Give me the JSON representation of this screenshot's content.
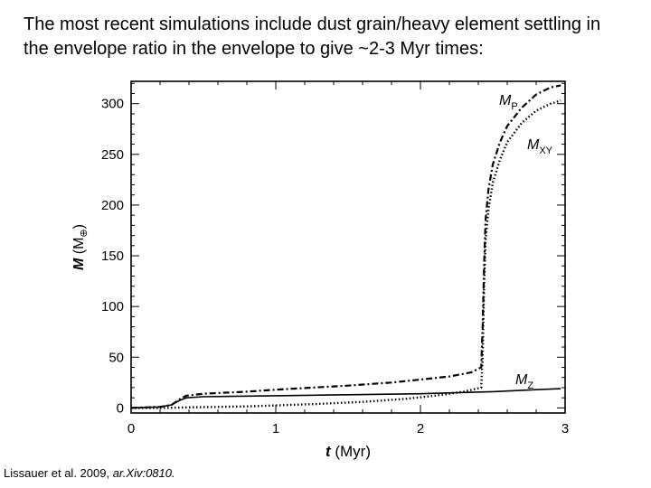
{
  "slide": {
    "heading_line1": "The most recent simulations include dust grain/heavy element settling in",
    "heading_line2": "the envelope ratio in the envelope to give ~2-3 Myr times:",
    "caption_authors": "Lissauer et al. 2009, ",
    "caption_ref": "ar.Xiv:0810."
  },
  "chart_data": {
    "type": "line",
    "xlabel_var": "t",
    "xlabel_unit": "(Myr)",
    "ylabel_var": "M",
    "ylabel_unit": "(M",
    "ylabel_sub": "⊕",
    "ylabel_close": ")",
    "xlim": [
      0,
      3
    ],
    "ylim": [
      -5,
      322
    ],
    "x_ticks": [
      0,
      1,
      2,
      3
    ],
    "y_ticks": [
      0,
      50,
      100,
      150,
      200,
      250,
      300
    ],
    "grid": false,
    "series": [
      {
        "name": "M",
        "subscript": "P",
        "style": "dash-dot",
        "color": "#000000",
        "x": [
          0,
          0.1,
          0.2,
          0.28,
          0.33,
          0.38,
          0.5,
          0.8,
          1.0,
          1.5,
          1.8,
          2.0,
          2.2,
          2.35,
          2.42,
          2.43,
          2.44,
          2.45,
          2.47,
          2.5,
          2.55,
          2.6,
          2.7,
          2.8,
          2.9,
          2.97
        ],
        "y": [
          0,
          0.5,
          1,
          3,
          8,
          12,
          14,
          16,
          18,
          22,
          25,
          28,
          31,
          35,
          40,
          80,
          140,
          185,
          215,
          240,
          262,
          278,
          296,
          309,
          316,
          318
        ]
      },
      {
        "name": "M",
        "subscript": "XY",
        "style": "dotted",
        "color": "#000000",
        "x": [
          0,
          0.1,
          0.2,
          0.3,
          0.38,
          0.5,
          0.8,
          1.0,
          1.3,
          1.6,
          1.9,
          2.1,
          2.3,
          2.42,
          2.43,
          2.44,
          2.45,
          2.47,
          2.5,
          2.55,
          2.6,
          2.7,
          2.8,
          2.9,
          2.97
        ],
        "y": [
          0,
          0,
          0,
          0.2,
          0.5,
          0.8,
          1.5,
          2.5,
          4,
          6,
          9,
          12,
          16,
          20,
          50,
          120,
          165,
          195,
          222,
          245,
          262,
          281,
          293,
          300,
          303
        ]
      },
      {
        "name": "M",
        "subscript": "Z",
        "style": "solid",
        "color": "#000000",
        "x": [
          0,
          0.1,
          0.2,
          0.28,
          0.33,
          0.38,
          0.5,
          1.0,
          1.5,
          2.0,
          2.5,
          2.8,
          2.97
        ],
        "y": [
          0,
          0.5,
          1,
          3,
          7,
          10,
          11,
          12,
          13,
          14,
          16,
          18,
          19
        ]
      }
    ]
  }
}
